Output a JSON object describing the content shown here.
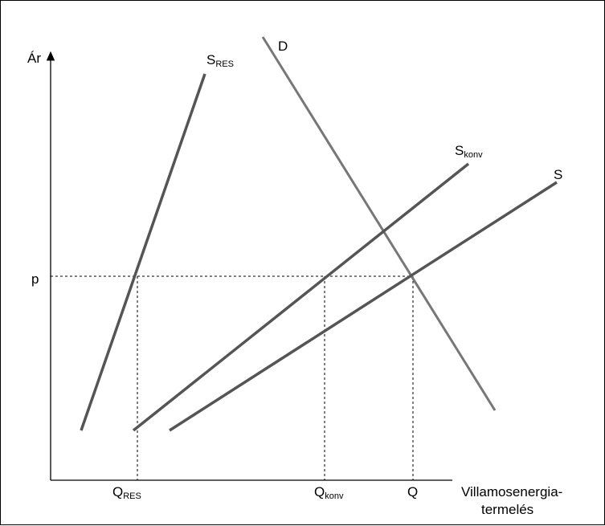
{
  "axes": {
    "y_label": "Ár",
    "x_label_line1": "Villamosenergia-",
    "x_label_line2": "termelés"
  },
  "price_label": "p",
  "curves": {
    "s_res": {
      "main": "S",
      "sub": "RES"
    },
    "d": {
      "label": "D"
    },
    "s_konv": {
      "main": "S",
      "sub": "konv"
    },
    "s": {
      "label": "S"
    }
  },
  "quantities": {
    "q_res": {
      "main": "Q",
      "sub": "RES"
    },
    "q_konv": {
      "main": "Q",
      "sub": "konv"
    },
    "q": {
      "label": "Q"
    }
  }
}
